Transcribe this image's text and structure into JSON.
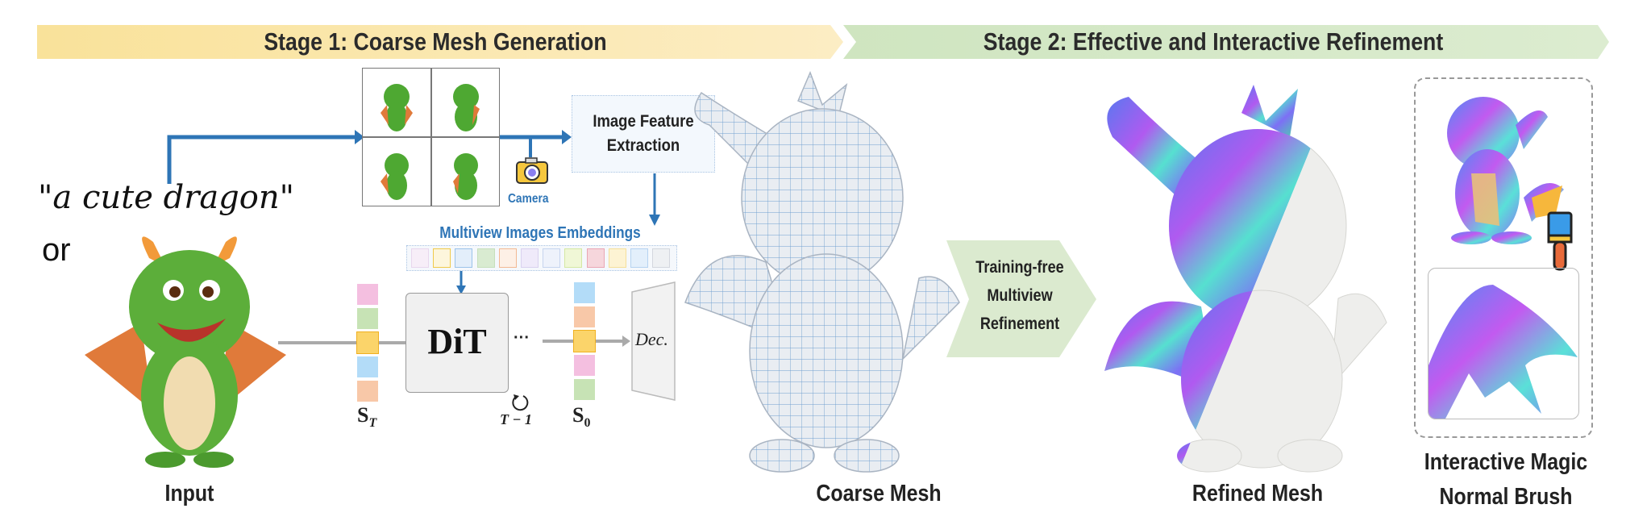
{
  "stage1": {
    "title": "Stage 1: Coarse Mesh Generation",
    "color": "#fae3a0"
  },
  "stage2": {
    "title": "Stage 2: Effective and Interactive Refinement",
    "color": "#d6e8c8"
  },
  "input": {
    "text_prompt": "\"a cute dragon\"",
    "or": "or",
    "caption": "Input"
  },
  "feature_box": {
    "line1": "Image Feature",
    "line2": "Extraction"
  },
  "camera_label": "Camera",
  "embeddings_label": "Multiview Images Embeddings",
  "embedding_tokens": [
    {
      "fill": "#f7eef8",
      "border": "#e8d7ee"
    },
    {
      "fill": "#fdf6dc",
      "border": "#f0c94a"
    },
    {
      "fill": "#e3eefa",
      "border": "#9cc3ea"
    },
    {
      "fill": "#d9ebd1",
      "border": "#c6dfbb"
    },
    {
      "fill": "#fdf0e6",
      "border": "#f3b993"
    },
    {
      "fill": "#efeafa",
      "border": "#d9d1ef"
    },
    {
      "fill": "#eef2fb",
      "border": "#c7d5ef"
    },
    {
      "fill": "#f0f7d6",
      "border": "#d5e8a3"
    },
    {
      "fill": "#f6d6dc",
      "border": "#eaa6b4"
    },
    {
      "fill": "#fdf3d3",
      "border": "#f5df9a"
    },
    {
      "fill": "#e3effb",
      "border": "#b6d3f1"
    },
    {
      "fill": "#eef0f3",
      "border": "#d3d7de"
    }
  ],
  "s_t_colors": [
    "#f4bfe0",
    "#c7e3b5",
    "#fbd46a",
    "#b3dcf8",
    "#f8c8a8"
  ],
  "s_0_colors": [
    "#b3dcf8",
    "#f8c8a8",
    "#fbd46a",
    "#f4bfe0",
    "#c7e3b5"
  ],
  "dit_label": "DiT",
  "ellipsis": "···",
  "s_t_label": "S",
  "s_t_sub": "T",
  "s_0_label": "S",
  "s_0_sub": "0",
  "loop_label": "T − 1",
  "decoder_label": "Dec.",
  "coarse_caption": "Coarse Mesh",
  "refine_step": {
    "line1": "Training-free",
    "line2": "Multiview",
    "line3": "Refinement"
  },
  "refined_caption": "Refined Mesh",
  "brush_caption": {
    "line1": "Interactive Magic",
    "line2": "Normal Brush"
  },
  "accent_blue": "#2e75b6",
  "icons": [
    "camera-icon",
    "loop-arrow-icon",
    "paintbrush-icon"
  ]
}
